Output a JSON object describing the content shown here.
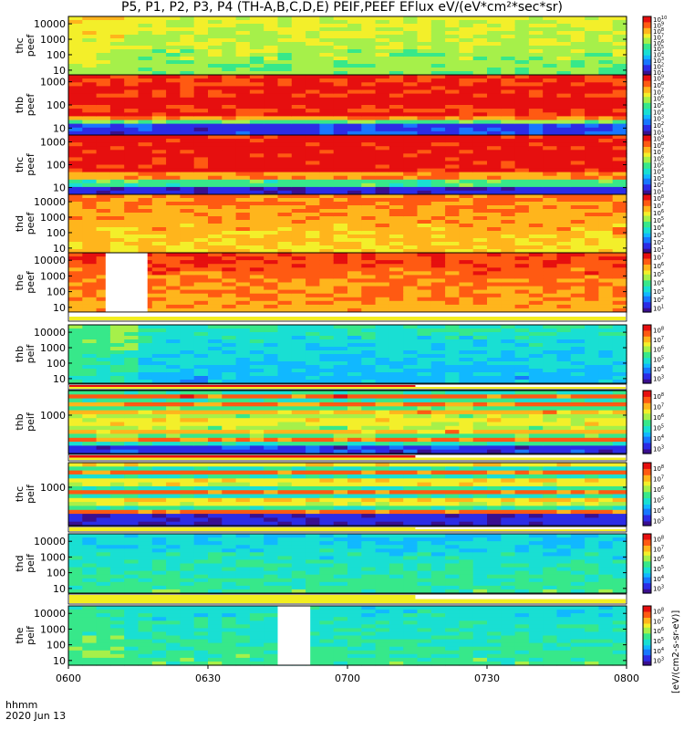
{
  "title": "P5, P1, P2, P3, P4 (TH-A,B,C,D,E) PEIF,PEEF EFlux eV/(eV*cm²*sec*sr)",
  "time_axis": {
    "row_label": "hhmm",
    "date_label": "2020 Jun 13",
    "ticks": [
      "0600",
      "0630",
      "0700",
      "0730",
      "0800"
    ]
  },
  "colorbar_unit": "[eV/(cm2-s-sr-eV)]",
  "chart_data": [
    {
      "type": "heatmap",
      "probe": "thc",
      "product": "peef",
      "ylabel": [
        "thc",
        "peef"
      ],
      "yticks": [
        "10",
        "100",
        "1000",
        "10000"
      ],
      "ylim": [
        5,
        30000
      ],
      "log_y": true,
      "colorbar_exponents": [
        1,
        2,
        3,
        4,
        5,
        6,
        7,
        8,
        9,
        10
      ]
    },
    {
      "type": "heatmap",
      "probe": "thb",
      "product": "peef",
      "ylabel": [
        "thb",
        "peef"
      ],
      "yticks": [
        "10",
        "100",
        "1000"
      ],
      "ylim": [
        5,
        2000
      ],
      "log_y": true,
      "colorbar_exponents": [
        1,
        2,
        3,
        4,
        5,
        6,
        7,
        8,
        9
      ]
    },
    {
      "type": "heatmap",
      "probe": "thc",
      "product": "peef",
      "ylabel": [
        "thc",
        "peef"
      ],
      "yticks": [
        "10",
        "100",
        "1000"
      ],
      "ylim": [
        5,
        2000
      ],
      "log_y": true,
      "colorbar_exponents": [
        1,
        2,
        3,
        4,
        5,
        6,
        7,
        8,
        9
      ]
    },
    {
      "type": "heatmap",
      "probe": "thd",
      "product": "peef",
      "ylabel": [
        "thd",
        "peef"
      ],
      "yticks": [
        "10",
        "100",
        "1000",
        "10000"
      ],
      "ylim": [
        5,
        30000
      ],
      "log_y": true,
      "colorbar_exponents": [
        1,
        2,
        3,
        4,
        5,
        6,
        7,
        8
      ]
    },
    {
      "type": "heatmap",
      "probe": "the",
      "product": "peef",
      "ylabel": [
        "the",
        "peef"
      ],
      "yticks": [
        "10",
        "100",
        "1000",
        "10000"
      ],
      "ylim": [
        5,
        30000
      ],
      "log_y": true,
      "colorbar_exponents": [
        1,
        2,
        3,
        4,
        5,
        6,
        7
      ],
      "data_gap": [
        "0608",
        "0617"
      ]
    },
    {
      "type": "heatmap",
      "probe": "thb",
      "product": "peif",
      "ylabel": [
        "thb",
        "peif"
      ],
      "yticks": [
        "10",
        "100",
        "1000",
        "10000"
      ],
      "ylim": [
        5,
        30000
      ],
      "log_y": true,
      "colorbar_exponents": [
        3,
        4,
        5,
        6,
        7,
        8
      ]
    },
    {
      "type": "heatmap",
      "probe": "thb",
      "product": "peif",
      "ylabel": [
        "thb",
        "peif"
      ],
      "yticks": [
        "1000"
      ],
      "ylim": [
        5,
        30000
      ],
      "log_y": true,
      "colorbar_exponents": [
        3,
        4,
        5,
        6,
        7,
        8
      ]
    },
    {
      "type": "heatmap",
      "probe": "thc",
      "product": "peif",
      "ylabel": [
        "thc",
        "peif"
      ],
      "yticks": [
        "1000"
      ],
      "ylim": [
        5,
        30000
      ],
      "log_y": true,
      "colorbar_exponents": [
        3,
        4,
        5,
        6,
        7,
        8
      ]
    },
    {
      "type": "heatmap",
      "probe": "thd",
      "product": "peif",
      "ylabel": [
        "thd",
        "peif"
      ],
      "yticks": [
        "10",
        "100",
        "1000",
        "10000"
      ],
      "ylim": [
        5,
        30000
      ],
      "log_y": true,
      "colorbar_exponents": [
        3,
        4,
        5,
        6,
        7,
        8
      ]
    },
    {
      "type": "heatmap",
      "probe": "the",
      "product": "peif",
      "ylabel": [
        "the",
        "peif"
      ],
      "yticks": [
        "10",
        "100",
        "1000",
        "10000"
      ],
      "ylim": [
        5,
        30000
      ],
      "log_y": true,
      "colorbar_exponents": [
        3,
        4,
        5,
        6,
        7,
        8
      ],
      "data_gap": [
        "0645",
        "0652"
      ]
    }
  ],
  "colors": {
    "palette": [
      "#3a0f8f",
      "#2c2ce6",
      "#1877ff",
      "#11b8ff",
      "#19dfd3",
      "#37e88a",
      "#a6f04a",
      "#f3ef2a",
      "#ffb51c",
      "#ff5a12",
      "#e60f0f"
    ]
  }
}
